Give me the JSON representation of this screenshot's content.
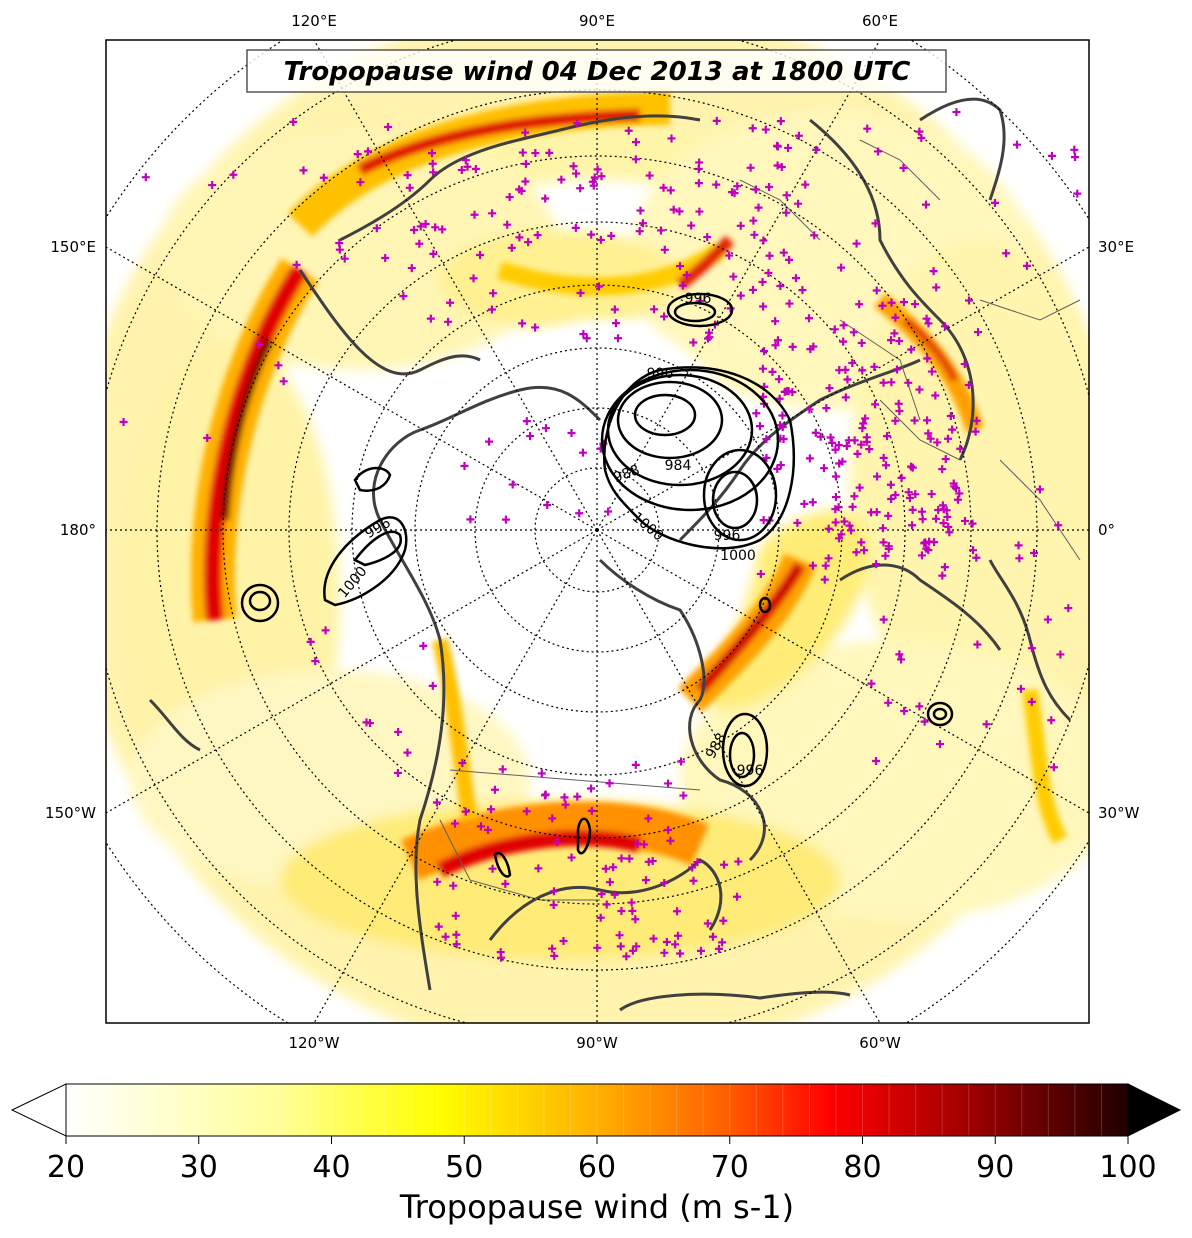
{
  "title": "Tropopause wind 04 Dec 2013 at 1800 UTC",
  "longitude_labels": {
    "top": [
      "120°E",
      "90°E",
      "60°E"
    ],
    "bottom": [
      "120°W",
      "90°W",
      "60°W"
    ],
    "left": [
      "150°E",
      "180°",
      "150°W"
    ],
    "right": [
      "30°E",
      "0°",
      "30°W"
    ]
  },
  "colorbar": {
    "label": "Tropopause wind (m s-1)",
    "ticks": [
      "20",
      "30",
      "40",
      "50",
      "60",
      "70",
      "80",
      "90",
      "100"
    ],
    "min": 20,
    "max": 100,
    "extend": "both",
    "colormap": "hot_r"
  },
  "contour_labels": [
    "996",
    "1000",
    "996",
    "984",
    "988",
    "1000",
    "996",
    "1000",
    "996",
    "988",
    "996"
  ],
  "colors": {
    "coastline": "#404040",
    "station_marker": "#c000c0",
    "contour": "#000000"
  }
}
